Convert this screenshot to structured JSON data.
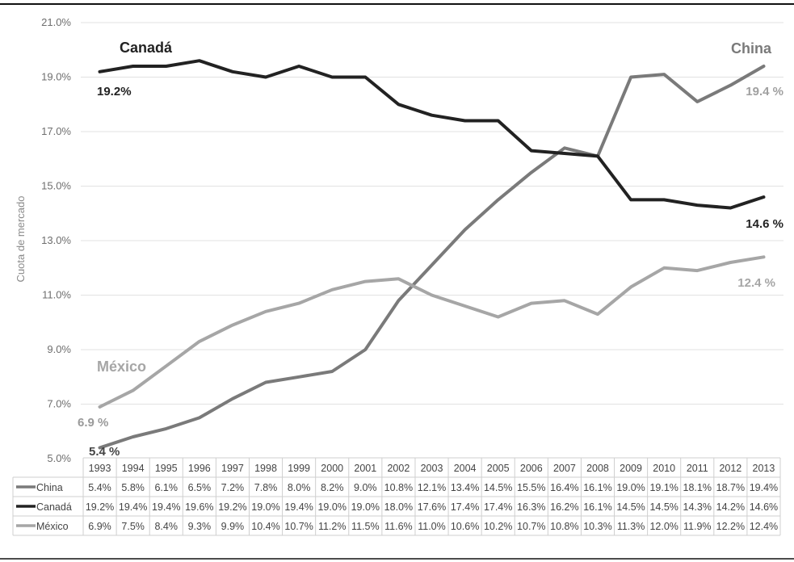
{
  "chart_data": {
    "type": "line",
    "ylabel": "Cuota de mercado",
    "ylim": [
      5.0,
      21.0
    ],
    "y_ticks": [
      "5.0%",
      "7.0%",
      "9.0%",
      "11.0%",
      "13.0%",
      "15.0%",
      "17.0%",
      "19.0%",
      "21.0%"
    ],
    "y_tick_values": [
      5,
      7,
      9,
      11,
      13,
      15,
      17,
      19,
      21
    ],
    "grid": true,
    "x": [
      "1993",
      "1994",
      "1995",
      "1996",
      "1997",
      "1998",
      "1999",
      "2000",
      "2001",
      "2002",
      "2003",
      "2004",
      "2005",
      "2006",
      "2007",
      "2008",
      "2009",
      "2010",
      "2011",
      "2012",
      "2013"
    ],
    "series": [
      {
        "name": "China",
        "color": "#7a7a7a",
        "values": [
          5.4,
          5.8,
          6.1,
          6.5,
          7.2,
          7.8,
          8.0,
          8.2,
          9.0,
          10.8,
          12.1,
          13.4,
          14.5,
          15.5,
          16.4,
          16.1,
          19.0,
          19.1,
          18.1,
          18.7,
          19.4
        ],
        "table_values": [
          "5.4%",
          "5.8%",
          "6.1%",
          "6.5%",
          "7.2%",
          "7.8%",
          "8.0%",
          "8.2%",
          "9.0%",
          "10.8%",
          "12.1%",
          "13.4%",
          "14.5%",
          "15.5%",
          "16.4%",
          "16.1%",
          "19.0%",
          "19.1%",
          "18.1%",
          "18.7%",
          "19.4%"
        ],
        "annotation_name": "China",
        "start_label": "5.4 %",
        "end_label": "19.4 %"
      },
      {
        "name": "Canadá",
        "color": "#222222",
        "values": [
          19.2,
          19.4,
          19.4,
          19.6,
          19.2,
          19.0,
          19.4,
          19.0,
          19.0,
          18.0,
          17.6,
          17.4,
          17.4,
          16.3,
          16.2,
          16.1,
          14.5,
          14.5,
          14.3,
          14.2,
          14.6
        ],
        "table_values": [
          "19.2%",
          "19.4%",
          "19.4%",
          "19.6%",
          "19.2%",
          "19.0%",
          "19.4%",
          "19.0%",
          "19.0%",
          "18.0%",
          "17.6%",
          "17.4%",
          "17.4%",
          "16.3%",
          "16.2%",
          "16.1%",
          "14.5%",
          "14.5%",
          "14.3%",
          "14.2%",
          "14.6%"
        ],
        "annotation_name": "Canadá",
        "start_label": "19.2%",
        "end_label": "14.6 %"
      },
      {
        "name": "México",
        "color": "#a6a6a6",
        "values": [
          6.9,
          7.5,
          8.4,
          9.3,
          9.9,
          10.4,
          10.7,
          11.2,
          11.5,
          11.6,
          11.0,
          10.6,
          10.2,
          10.7,
          10.8,
          10.3,
          11.3,
          12.0,
          11.9,
          12.2,
          12.4
        ],
        "table_values": [
          "6.9%",
          "7.5%",
          "8.4%",
          "9.3%",
          "9.9%",
          "10.4%",
          "10.7%",
          "11.2%",
          "11.5%",
          "11.6%",
          "11.0%",
          "10.6%",
          "10.2%",
          "10.7%",
          "10.8%",
          "10.3%",
          "11.3%",
          "12.0%",
          "11.9%",
          "12.2%",
          "12.4%"
        ],
        "annotation_name": "México",
        "start_label": "6.9 %",
        "end_label": "12.4 %"
      }
    ]
  }
}
